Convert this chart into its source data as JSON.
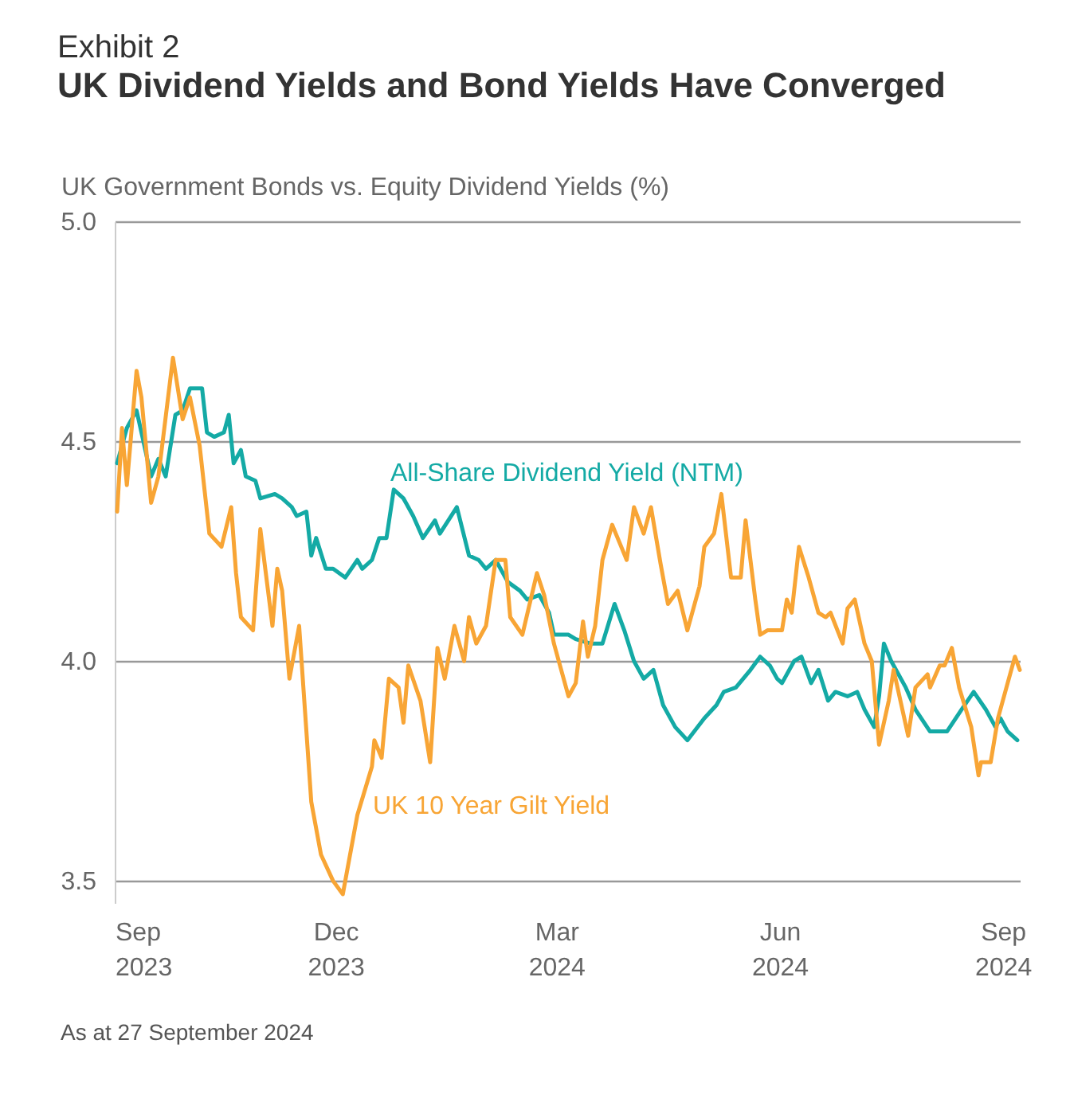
{
  "chart_data": {
    "type": "line",
    "title": "Exhibit 2",
    "subtitle": "UK Dividend Yields and Bond Yields Have Converged",
    "ylabel": "UK Government Bonds vs. Equity Dividend Yields (%)",
    "annotations": [
      "As at 27 September 2024"
    ],
    "xlim": [
      "2023-09-01",
      "2024-09-08"
    ],
    "xticks": [
      {
        "value": "2023-09-01",
        "label": "Sep\n2023"
      },
      {
        "value": "2023-12-01",
        "label": "Dec\n2023"
      },
      {
        "value": "2024-03-01",
        "label": "Mar\n2024"
      },
      {
        "value": "2024-06-01",
        "label": "Jun\n2024"
      },
      {
        "value": "2024-09-01",
        "label": "Sep\n2024"
      }
    ],
    "ylim": [
      3.45,
      5.0
    ],
    "yticks": [
      {
        "value": 3.5,
        "label": "3.5"
      },
      {
        "value": 4.0,
        "label": "4.0"
      },
      {
        "value": 4.5,
        "label": "4.5"
      },
      {
        "value": 5.0,
        "label": "5.0"
      }
    ],
    "grid": "y",
    "line_style": "solid",
    "marker": "none",
    "series": [
      {
        "name": "All-Share Dividend Yield (NTM)",
        "color": "#14aaa5",
        "x": [
          "2023-09-02",
          "2023-09-06",
          "2023-09-10",
          "2023-09-12",
          "2023-09-16",
          "2023-09-19",
          "2023-09-22",
          "2023-09-26",
          "2023-09-29",
          "2023-10-02",
          "2023-10-07",
          "2023-10-09",
          "2023-10-12",
          "2023-10-16",
          "2023-10-18",
          "2023-10-20",
          "2023-10-23",
          "2023-10-25",
          "2023-10-29",
          "2023-10-31",
          "2023-11-06",
          "2023-11-09",
          "2023-11-13",
          "2023-11-15",
          "2023-11-19",
          "2023-11-21",
          "2023-11-23",
          "2023-11-27",
          "2023-11-30",
          "2023-12-05",
          "2023-12-10",
          "2023-12-12",
          "2023-12-16",
          "2023-12-19",
          "2023-12-22",
          "2023-12-25",
          "2023-12-29",
          "2024-01-02",
          "2024-01-06",
          "2024-01-11",
          "2024-01-13",
          "2024-01-20",
          "2024-01-25",
          "2024-01-29",
          "2024-02-01",
          "2024-02-05",
          "2024-02-10",
          "2024-02-15",
          "2024-02-18",
          "2024-02-23",
          "2024-02-27",
          "2024-02-29",
          "2024-03-06",
          "2024-03-09",
          "2024-03-15",
          "2024-03-20",
          "2024-03-25",
          "2024-03-29",
          "2024-04-02",
          "2024-04-06",
          "2024-04-10",
          "2024-04-14",
          "2024-04-19",
          "2024-04-24",
          "2024-05-01",
          "2024-05-06",
          "2024-05-09",
          "2024-05-14",
          "2024-05-20",
          "2024-05-24",
          "2024-05-28",
          "2024-05-31",
          "2024-06-02",
          "2024-06-07",
          "2024-06-10",
          "2024-06-14",
          "2024-06-17",
          "2024-06-21",
          "2024-06-24",
          "2024-06-29",
          "2024-07-03",
          "2024-07-06",
          "2024-07-10",
          "2024-07-12",
          "2024-07-14",
          "2024-07-17",
          "2024-07-23",
          "2024-07-27",
          "2024-08-02",
          "2024-08-09",
          "2024-08-15",
          "2024-08-20",
          "2024-08-25",
          "2024-08-29",
          "2024-08-31",
          "2024-09-03",
          "2024-09-07"
        ],
        "values": [
          4.45,
          4.53,
          4.57,
          4.52,
          4.42,
          4.46,
          4.42,
          4.56,
          4.57,
          4.62,
          4.62,
          4.52,
          4.51,
          4.52,
          4.56,
          4.45,
          4.48,
          4.42,
          4.41,
          4.37,
          4.38,
          4.37,
          4.35,
          4.33,
          4.34,
          4.24,
          4.28,
          4.21,
          4.21,
          4.19,
          4.23,
          4.21,
          4.23,
          4.28,
          4.28,
          4.39,
          4.37,
          4.33,
          4.28,
          4.32,
          4.29,
          4.35,
          4.24,
          4.23,
          4.21,
          4.23,
          4.18,
          4.16,
          4.14,
          4.15,
          4.11,
          4.06,
          4.06,
          4.05,
          4.04,
          4.04,
          4.13,
          4.07,
          4.0,
          3.96,
          3.98,
          3.9,
          3.85,
          3.82,
          3.87,
          3.9,
          3.93,
          3.94,
          3.98,
          4.01,
          3.99,
          3.96,
          3.95,
          4.0,
          4.01,
          3.95,
          3.98,
          3.91,
          3.93,
          3.92,
          3.93,
          3.89,
          3.85,
          3.92,
          4.04,
          4.0,
          3.94,
          3.89,
          3.84,
          3.84,
          3.89,
          3.93,
          3.89,
          3.85,
          3.87,
          3.84,
          3.82
        ]
      },
      {
        "name": "UK 10 Year Gilt Yield",
        "color": "#f8a535",
        "x": [
          "2023-09-02",
          "2023-09-04",
          "2023-09-06",
          "2023-09-10",
          "2023-09-12",
          "2023-09-16",
          "2023-09-19",
          "2023-09-25",
          "2023-09-29",
          "2023-10-02",
          "2023-10-06",
          "2023-10-10",
          "2023-10-15",
          "2023-10-19",
          "2023-10-21",
          "2023-10-23",
          "2023-10-28",
          "2023-10-31",
          "2023-11-05",
          "2023-11-07",
          "2023-11-09",
          "2023-11-12",
          "2023-11-16",
          "2023-11-21",
          "2023-11-25",
          "2023-11-30",
          "2023-12-04",
          "2023-12-06",
          "2023-12-10",
          "2023-12-16",
          "2023-12-17",
          "2023-12-20",
          "2023-12-23",
          "2023-12-27",
          "2023-12-29",
          "2023-12-31",
          "2024-01-05",
          "2024-01-09",
          "2024-01-12",
          "2024-01-15",
          "2024-01-19",
          "2024-01-23",
          "2024-01-25",
          "2024-01-28",
          "2024-02-01",
          "2024-02-05",
          "2024-02-09",
          "2024-02-11",
          "2024-02-16",
          "2024-02-22",
          "2024-02-25",
          "2024-02-29",
          "2024-03-06",
          "2024-03-09",
          "2024-03-12",
          "2024-03-14",
          "2024-03-17",
          "2024-03-20",
          "2024-03-24",
          "2024-03-27",
          "2024-03-30",
          "2024-04-02",
          "2024-04-06",
          "2024-04-09",
          "2024-04-13",
          "2024-04-16",
          "2024-04-20",
          "2024-04-24",
          "2024-04-29",
          "2024-05-01",
          "2024-05-05",
          "2024-05-08",
          "2024-05-12",
          "2024-05-16",
          "2024-05-18",
          "2024-05-22",
          "2024-05-24",
          "2024-05-27",
          "2024-06-02",
          "2024-06-04",
          "2024-06-06",
          "2024-06-09",
          "2024-06-13",
          "2024-06-17",
          "2024-06-20",
          "2024-06-22",
          "2024-06-27",
          "2024-06-29",
          "2024-07-02",
          "2024-07-06",
          "2024-07-09",
          "2024-07-12",
          "2024-07-16",
          "2024-07-18",
          "2024-07-24",
          "2024-07-27",
          "2024-08-01",
          "2024-08-02",
          "2024-08-06",
          "2024-08-08",
          "2024-08-11",
          "2024-08-14",
          "2024-08-19",
          "2024-08-22",
          "2024-08-23",
          "2024-08-27",
          "2024-08-30",
          "2024-09-02",
          "2024-09-06",
          "2024-09-08"
        ],
        "values": [
          4.34,
          4.53,
          4.4,
          4.66,
          4.6,
          4.36,
          4.42,
          4.69,
          4.55,
          4.6,
          4.49,
          4.29,
          4.26,
          4.35,
          4.2,
          4.1,
          4.07,
          4.3,
          4.08,
          4.21,
          4.16,
          3.96,
          4.08,
          3.68,
          3.56,
          3.5,
          3.47,
          3.53,
          3.65,
          3.76,
          3.82,
          3.78,
          3.96,
          3.94,
          3.86,
          3.99,
          3.91,
          3.77,
          4.03,
          3.96,
          4.08,
          4.0,
          4.1,
          4.04,
          4.08,
          4.23,
          4.23,
          4.1,
          4.06,
          4.2,
          4.15,
          4.04,
          3.92,
          3.95,
          4.09,
          4.01,
          4.08,
          4.23,
          4.31,
          4.27,
          4.23,
          4.35,
          4.29,
          4.35,
          4.22,
          4.13,
          4.16,
          4.07,
          4.17,
          4.26,
          4.29,
          4.38,
          4.19,
          4.19,
          4.32,
          4.14,
          4.06,
          4.07,
          4.07,
          4.14,
          4.11,
          4.26,
          4.19,
          4.11,
          4.1,
          4.11,
          4.04,
          4.12,
          4.14,
          4.04,
          4.0,
          3.81,
          3.91,
          3.98,
          3.83,
          3.94,
          3.97,
          3.94,
          3.99,
          3.99,
          4.03,
          3.94,
          3.85,
          3.74,
          3.77,
          3.77,
          3.87,
          3.93,
          4.01,
          3.98
        ]
      }
    ]
  }
}
